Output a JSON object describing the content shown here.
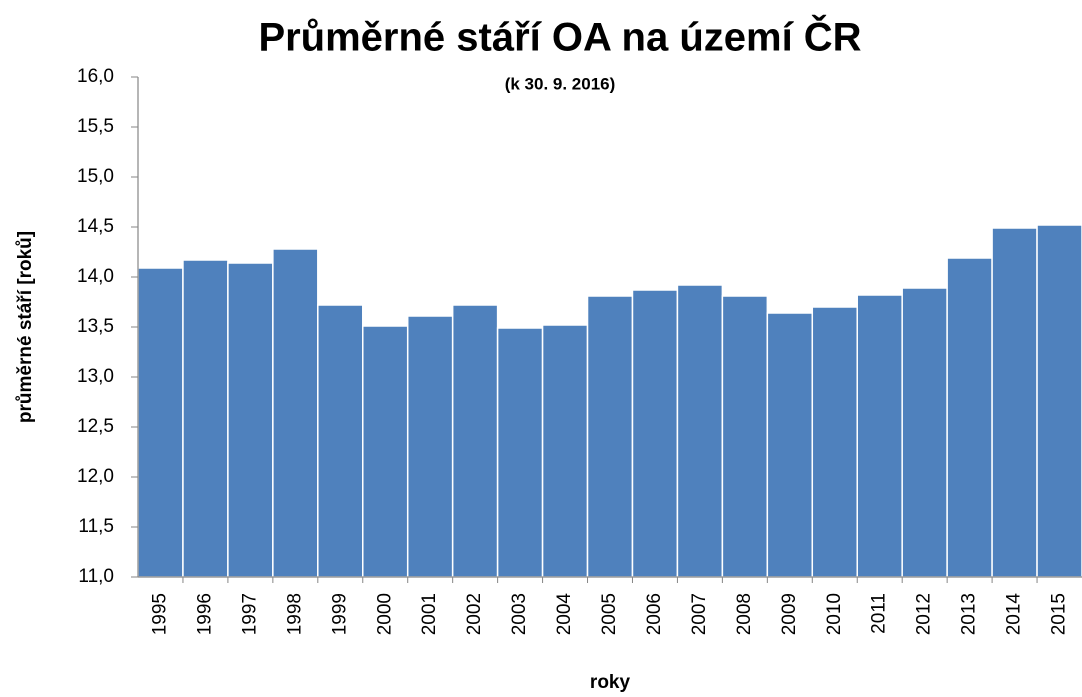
{
  "chart_data": {
    "type": "bar",
    "title": "Průměrné stáří OA na území ČR",
    "subtitle": "(k 30. 9. 2016)",
    "x_label": "roky",
    "y_label": "průměrné stáří [roků]",
    "categories": [
      "1995",
      "1996",
      "1997",
      "1998",
      "1999",
      "2000",
      "2001",
      "2002",
      "2003",
      "2004",
      "2005",
      "2006",
      "2007",
      "2008",
      "2009",
      "2010",
      "2011",
      "2012",
      "2013",
      "2014",
      "2015"
    ],
    "values": [
      14.09,
      14.17,
      14.14,
      14.28,
      13.72,
      13.51,
      13.61,
      13.72,
      13.49,
      13.52,
      13.81,
      13.87,
      13.92,
      13.81,
      13.64,
      13.7,
      13.82,
      13.89,
      14.19,
      14.49,
      14.52
    ],
    "color": "#4f81bd",
    "ylim": [
      11,
      16
    ],
    "yticks": [
      {
        "value": 11,
        "label": "11,0"
      },
      {
        "value": 11.5,
        "label": "11,5"
      },
      {
        "value": 12,
        "label": "12,0"
      },
      {
        "value": 12.5,
        "label": "12,5"
      },
      {
        "value": 13,
        "label": "13,0"
      },
      {
        "value": 13.5,
        "label": "13,5"
      },
      {
        "value": 14,
        "label": "14,0"
      },
      {
        "value": 14.5,
        "label": "14,5"
      },
      {
        "value": 15,
        "label": "15,0"
      },
      {
        "value": 15.5,
        "label": "15,5"
      },
      {
        "value": 16,
        "label": "16,0"
      }
    ],
    "grid": false
  }
}
